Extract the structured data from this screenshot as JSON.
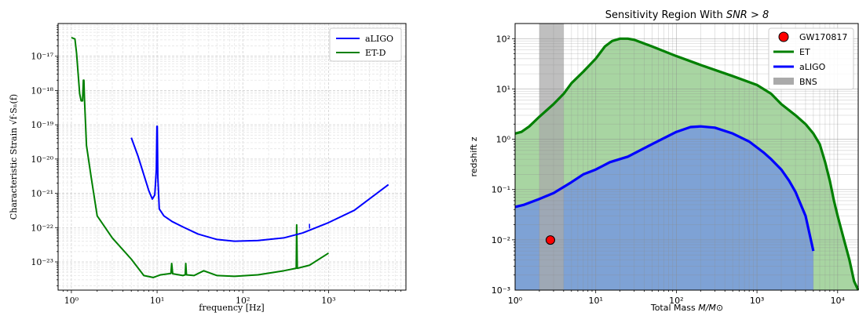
{
  "chart_data": [
    {
      "type": "line",
      "xlabel": "frequency [Hz]",
      "ylabel": "Characteristic Strain √f·Sₙ(f)",
      "xscale": "log",
      "yscale": "log",
      "xlim": [
        0.7,
        8000
      ],
      "ylim": [
        1.5e-24,
        9e-17
      ],
      "grid": "on (major and minor, dashed)",
      "legend_position": "top-right",
      "x_ticks": [
        {
          "v": 1,
          "label": "10⁰"
        },
        {
          "v": 10,
          "label": "10¹"
        },
        {
          "v": 100,
          "label": "10²"
        },
        {
          "v": 1000,
          "label": "10³"
        }
      ],
      "y_ticks": [
        {
          "v": 1e-23,
          "label": "10⁻²³"
        },
        {
          "v": 1e-22,
          "label": "10⁻²²"
        },
        {
          "v": 1e-21,
          "label": "10⁻²¹"
        },
        {
          "v": 1e-20,
          "label": "10⁻²⁰"
        },
        {
          "v": 1e-19,
          "label": "10⁻¹⁹"
        },
        {
          "v": 1e-18,
          "label": "10⁻¹⁸"
        },
        {
          "v": 1e-17,
          "label": "10⁻¹⁷"
        }
      ],
      "series": [
        {
          "name": "aLIGO",
          "color": "#0000ff",
          "points": [
            [
              5,
              4.2e-20
            ],
            [
              6,
              1.2e-20
            ],
            [
              7,
              3.5e-21
            ],
            [
              8,
              1.2e-21
            ],
            [
              8.8,
              6.8e-22
            ],
            [
              9.4,
              9e-22
            ],
            [
              9.8,
              5e-21
            ],
            [
              9.95,
              9e-20
            ],
            [
              10.05,
              9e-20
            ],
            [
              10.2,
              3e-21
            ],
            [
              10.6,
              3.5e-22
            ],
            [
              12,
              2.2e-22
            ],
            [
              15,
              1.5e-22
            ],
            [
              20,
              1.05e-22
            ],
            [
              30,
              6.5e-23
            ],
            [
              50,
              4.5e-23
            ],
            [
              80,
              4e-23
            ],
            [
              150,
              4.2e-23
            ],
            [
              300,
              5e-23
            ],
            [
              500,
              7e-23
            ],
            [
              1000,
              1.4e-22
            ],
            [
              2000,
              3.2e-22
            ],
            [
              5000,
              1.8e-21
            ]
          ]
        },
        {
          "name": "ET-D",
          "color": "#008000",
          "points": [
            [
              1,
              3.5e-17
            ],
            [
              1.1,
              3.2e-17
            ],
            [
              1.15,
              1.2e-17
            ],
            [
              1.2,
              3e-18
            ],
            [
              1.25,
              8e-19
            ],
            [
              1.3,
              5e-19
            ],
            [
              1.35,
              5e-19
            ],
            [
              1.38,
              2e-18
            ],
            [
              1.4,
              2e-18
            ],
            [
              1.42,
              6e-19
            ],
            [
              1.5,
              2.5e-20
            ],
            [
              1.7,
              3e-21
            ],
            [
              2,
              2.2e-22
            ],
            [
              3,
              5e-23
            ],
            [
              5,
              1.2e-23
            ],
            [
              7,
              4e-24
            ],
            [
              9,
              3.5e-24
            ],
            [
              11,
              4.2e-24
            ],
            [
              14.5,
              4.6e-24
            ],
            [
              14.8,
              9e-24
            ],
            [
              15.2,
              4.5e-24
            ],
            [
              20,
              4e-24
            ],
            [
              21.3,
              4.2e-24
            ],
            [
              21.6,
              9e-24
            ],
            [
              22,
              4.2e-24
            ],
            [
              27,
              4e-24
            ],
            [
              35,
              5.5e-24
            ],
            [
              50,
              4e-24
            ],
            [
              80,
              3.8e-24
            ],
            [
              150,
              4.2e-24
            ],
            [
              300,
              5.5e-24
            ],
            [
              420,
              6.5e-24
            ],
            [
              425,
              1.2e-22
            ],
            [
              432,
              6.5e-24
            ],
            [
              600,
              8e-24
            ],
            [
              1000,
              1.8e-23
            ]
          ]
        }
      ],
      "annotations": [
        {
          "x": 600,
          "y": 1.1e-22,
          "color": "#0000ff",
          "kind": "tiny blue spike near 600 Hz"
        }
      ]
    },
    {
      "type": "area",
      "title": "Sensitivity Region With SNR > 8",
      "title_prefix": "Sensitivity Region With ",
      "title_math": "SNR > 8",
      "xlabel": "Total Mass M/M⊙",
      "xlabel_prefix": "Total Mass ",
      "xlabel_math": "M/M⊙",
      "ylabel": "redshift z",
      "xscale": "log",
      "yscale": "log",
      "xlim": [
        1,
        18000
      ],
      "ylim": [
        0.001,
        200
      ],
      "grid": "on (major and minor)",
      "legend_position": "top-right",
      "x_ticks": [
        {
          "v": 1,
          "label": "10⁰"
        },
        {
          "v": 10,
          "label": "10¹"
        },
        {
          "v": 100,
          "label": "10²"
        },
        {
          "v": 1000,
          "label": "10³"
        },
        {
          "v": 10000,
          "label": "10⁴"
        }
      ],
      "y_ticks": [
        {
          "v": 0.001,
          "label": "10⁻³"
        },
        {
          "v": 0.01,
          "label": "10⁻²"
        },
        {
          "v": 0.1,
          "label": "10⁻¹"
        },
        {
          "v": 1,
          "label": "10⁰"
        },
        {
          "v": 10,
          "label": "10¹"
        },
        {
          "v": 100,
          "label": "10²"
        }
      ],
      "legend": [
        {
          "label": "GW170817",
          "kind": "marker",
          "color": "#ff0000"
        },
        {
          "label": "ET",
          "kind": "line",
          "color": "#008000"
        },
        {
          "label": "aLIGO",
          "kind": "line",
          "color": "#0000ff"
        },
        {
          "label": "BNS",
          "kind": "band",
          "color": "#aaaaaa"
        }
      ],
      "series": [
        {
          "name": "ET",
          "color": "#008000",
          "fill": "#a8d5a2",
          "points": [
            [
              1,
              1.3
            ],
            [
              1.2,
              1.4
            ],
            [
              1.5,
              1.8
            ],
            [
              2,
              2.8
            ],
            [
              3,
              5
            ],
            [
              4,
              8
            ],
            [
              5,
              13
            ],
            [
              7,
              22
            ],
            [
              10,
              40
            ],
            [
              13,
              70
            ],
            [
              16,
              90
            ],
            [
              20,
              100
            ],
            [
              25,
              100
            ],
            [
              30,
              95
            ],
            [
              50,
              70
            ],
            [
              100,
              45
            ],
            [
              200,
              30
            ],
            [
              500,
              18
            ],
            [
              1000,
              12
            ],
            [
              1500,
              8
            ],
            [
              2000,
              5
            ],
            [
              3000,
              3
            ],
            [
              4000,
              2
            ],
            [
              5000,
              1.3
            ],
            [
              6000,
              0.8
            ],
            [
              7000,
              0.35
            ],
            [
              8000,
              0.15
            ],
            [
              9000,
              0.06
            ],
            [
              10000,
              0.03
            ],
            [
              12000,
              0.01
            ],
            [
              14000,
              0.004
            ],
            [
              16000,
              0.0015
            ],
            [
              18000,
              0.001
            ]
          ]
        },
        {
          "name": "aLIGO",
          "color": "#0000ff",
          "fill": "#7b9fd8",
          "points": [
            [
              1,
              0.045
            ],
            [
              1.3,
              0.05
            ],
            [
              2,
              0.065
            ],
            [
              3,
              0.085
            ],
            [
              5,
              0.14
            ],
            [
              7,
              0.2
            ],
            [
              10,
              0.25
            ],
            [
              15,
              0.35
            ],
            [
              25,
              0.45
            ],
            [
              50,
              0.8
            ],
            [
              100,
              1.4
            ],
            [
              150,
              1.75
            ],
            [
              200,
              1.8
            ],
            [
              300,
              1.7
            ],
            [
              500,
              1.3
            ],
            [
              800,
              0.9
            ],
            [
              1200,
              0.55
            ],
            [
              1500,
              0.4
            ],
            [
              2000,
              0.25
            ],
            [
              2500,
              0.15
            ],
            [
              3000,
              0.09
            ],
            [
              4000,
              0.03
            ],
            [
              5000,
              0.006
            ]
          ]
        },
        {
          "name": "GW170817",
          "kind": "point",
          "color": "#ff0000",
          "points": [
            [
              2.74,
              0.0099
            ]
          ]
        },
        {
          "name": "BNS",
          "kind": "band",
          "color": "#aaaaaa",
          "x_range": [
            2,
            4
          ]
        }
      ]
    }
  ]
}
